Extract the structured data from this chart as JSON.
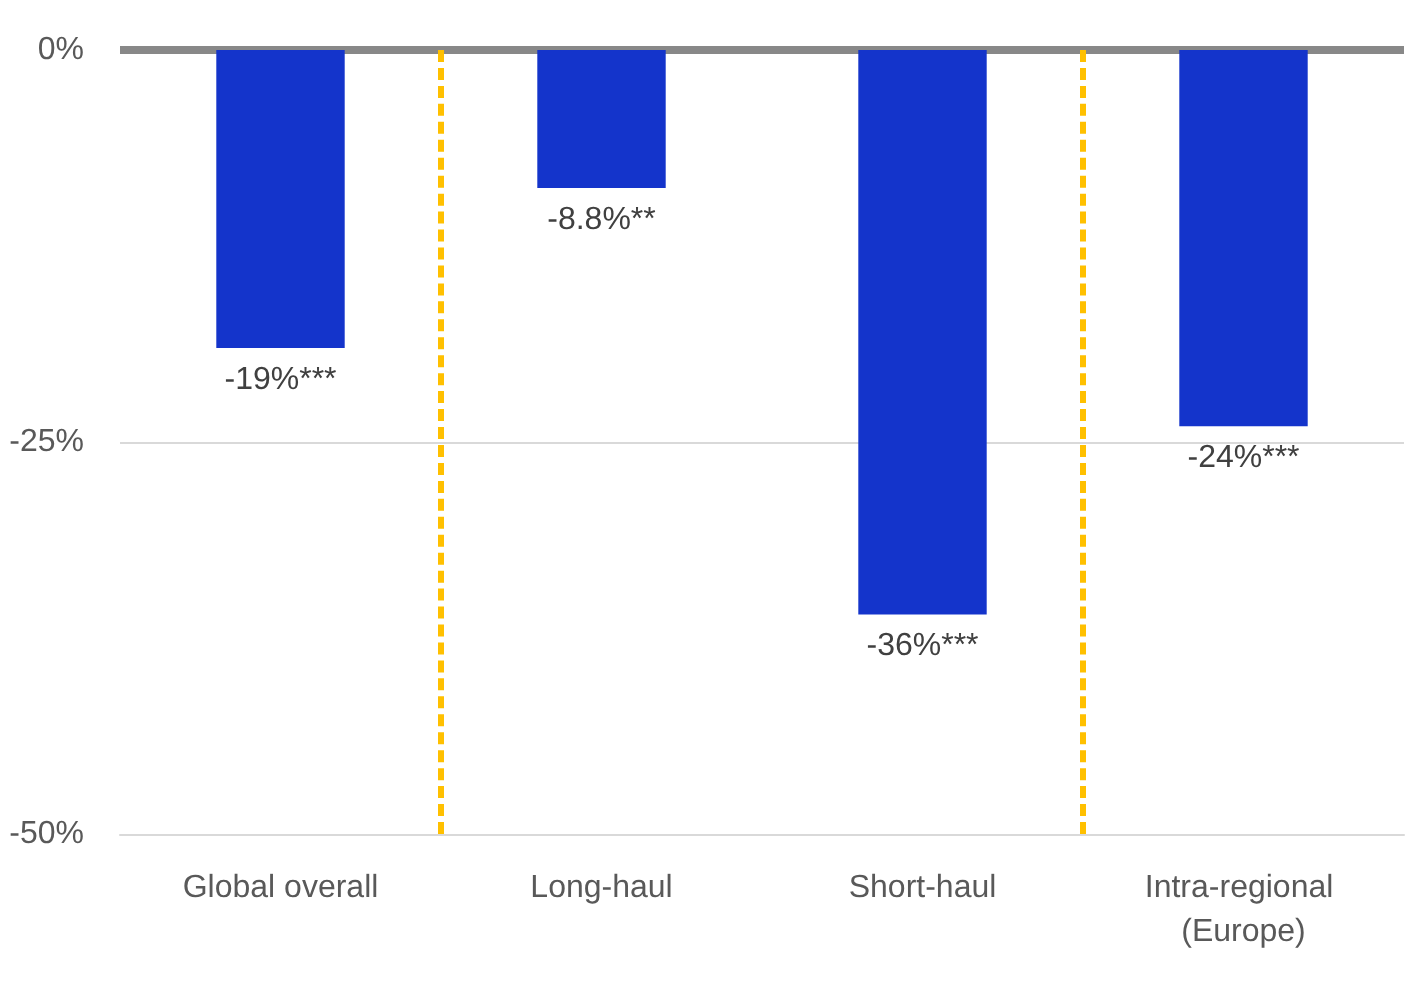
{
  "chart_data": {
    "type": "bar",
    "categories": [
      "Global overall",
      "Long-haul",
      "Short-haul",
      "Intra-regional (Europe)"
    ],
    "values": [
      -19,
      -8.8,
      -36,
      -24
    ],
    "value_labels": [
      "-19%***",
      "-8.8%**",
      "-36%***",
      "-24%***"
    ],
    "color": "#1434cb",
    "ylim": [
      -50,
      0
    ],
    "yticks": [
      {
        "value": -50,
        "label": "-50%"
      },
      {
        "value": -25,
        "label": "-25%"
      },
      {
        "value": 0,
        "label": "0%"
      }
    ],
    "ref_lines": [
      {
        "axis": "y",
        "value": 0,
        "color": "#888888",
        "line_style": "solid"
      },
      {
        "axis": "y",
        "value": -25,
        "color": "#d9d9d9",
        "line_style": "solid"
      }
    ]
  }
}
